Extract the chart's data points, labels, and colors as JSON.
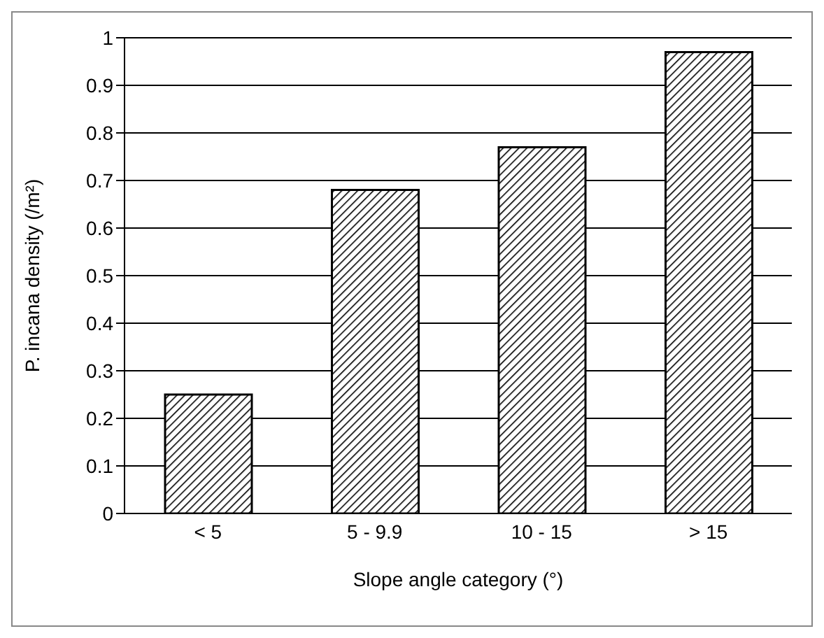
{
  "chart_data": {
    "type": "bar",
    "xlabel": "Slope angle category (°)",
    "ylabel": "P. incana density (/m²)",
    "categories": [
      "< 5",
      "5 - 9.9",
      "10 - 15",
      "> 15"
    ],
    "values": [
      0.25,
      0.68,
      0.77,
      0.97
    ],
    "color": "#000000",
    "ylim": [
      0,
      1
    ],
    "yticks": [
      0,
      0.1,
      0.2,
      0.3,
      0.4,
      0.5,
      0.6,
      0.7,
      0.8,
      0.9,
      1
    ],
    "grid": "y"
  }
}
